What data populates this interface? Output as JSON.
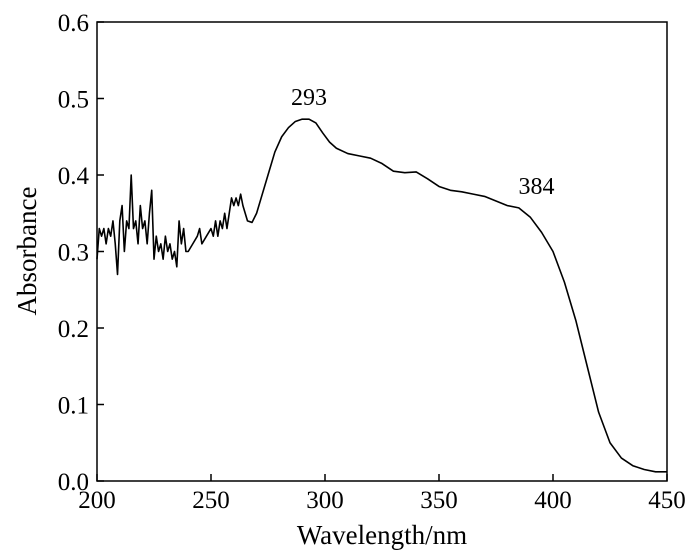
{
  "chart_data": {
    "type": "line",
    "x_label": "Wavelength/nm",
    "y_label": "Absorbance",
    "color": "#000000",
    "xlim": [
      200,
      450
    ],
    "ylim": [
      0,
      0.6
    ],
    "xticks": [
      200,
      250,
      300,
      350,
      400,
      450
    ],
    "yticks": [
      {
        "value": 0,
        "label": "0.0"
      },
      0.1,
      0.2,
      0.3,
      0.4,
      0.5,
      0.6
    ],
    "annotations": [
      {
        "text": "293",
        "x": 293,
        "y": 0.473
      },
      {
        "text": "384",
        "x": 384,
        "y": 0.357
      }
    ],
    "x": [
      200,
      201,
      202,
      203,
      204,
      205,
      206,
      207,
      208,
      209,
      210,
      211,
      212,
      213,
      214,
      215,
      216,
      217,
      218,
      219,
      220,
      221,
      222,
      223,
      224,
      225,
      226,
      227,
      228,
      229,
      230,
      231,
      232,
      233,
      234,
      235,
      236,
      237,
      238,
      239,
      240,
      242,
      244,
      245,
      246,
      248,
      250,
      251,
      252,
      253,
      254,
      255,
      256,
      257,
      258,
      259,
      260,
      261,
      262,
      263,
      264,
      265,
      266,
      268,
      270,
      272,
      275,
      278,
      281,
      284,
      287,
      290,
      293,
      296,
      299,
      302,
      305,
      310,
      315,
      320,
      325,
      330,
      335,
      340,
      345,
      350,
      355,
      360,
      365,
      370,
      375,
      380,
      385,
      390,
      395,
      400,
      405,
      410,
      415,
      420,
      425,
      430,
      435,
      440,
      445,
      450
    ],
    "values": [
      0.29,
      0.33,
      0.32,
      0.33,
      0.31,
      0.33,
      0.32,
      0.34,
      0.31,
      0.27,
      0.34,
      0.36,
      0.3,
      0.34,
      0.33,
      0.4,
      0.33,
      0.34,
      0.31,
      0.36,
      0.33,
      0.34,
      0.31,
      0.35,
      0.38,
      0.29,
      0.32,
      0.3,
      0.31,
      0.29,
      0.32,
      0.3,
      0.31,
      0.29,
      0.3,
      0.28,
      0.34,
      0.31,
      0.33,
      0.3,
      0.3,
      0.31,
      0.32,
      0.33,
      0.31,
      0.32,
      0.33,
      0.32,
      0.34,
      0.32,
      0.34,
      0.33,
      0.35,
      0.33,
      0.35,
      0.37,
      0.36,
      0.37,
      0.36,
      0.375,
      0.36,
      0.35,
      0.34,
      0.338,
      0.35,
      0.37,
      0.4,
      0.43,
      0.45,
      0.462,
      0.47,
      0.473,
      0.473,
      0.468,
      0.455,
      0.443,
      0.435,
      0.428,
      0.425,
      0.422,
      0.415,
      0.405,
      0.403,
      0.404,
      0.395,
      0.385,
      0.38,
      0.378,
      0.375,
      0.372,
      0.366,
      0.36,
      0.357,
      0.345,
      0.325,
      0.3,
      0.26,
      0.21,
      0.15,
      0.09,
      0.05,
      0.03,
      0.02,
      0.015,
      0.012,
      0.012
    ]
  }
}
